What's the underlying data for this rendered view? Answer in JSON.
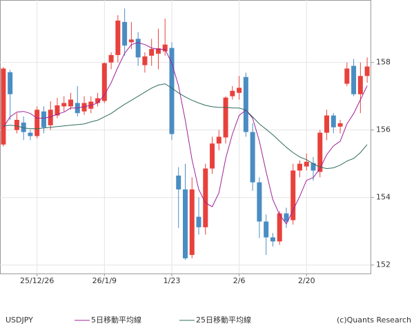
{
  "chart_data": {
    "type": "candlestick",
    "symbol": "USDJPY",
    "copyright": "(c)Quants Research",
    "categories": [
      null,
      null,
      null,
      null,
      null,
      "25/12/26",
      null,
      null,
      null,
      null,
      null,
      null,
      null,
      null,
      null,
      "26/1/9",
      null,
      null,
      null,
      null,
      null,
      null,
      null,
      null,
      null,
      "1/23",
      null,
      null,
      null,
      null,
      null,
      null,
      null,
      null,
      null,
      "2/6",
      null,
      null,
      null,
      null,
      null,
      null,
      null,
      null,
      null,
      "2/20",
      null,
      null,
      null,
      null,
      null,
      null,
      null,
      null,
      null
    ],
    "open": [
      155.57,
      157.71,
      156.0,
      156.22,
      155.92,
      155.82,
      156.55,
      156.14,
      156.43,
      156.7,
      156.7,
      156.8,
      156.55,
      156.63,
      156.8,
      156.86,
      158.0,
      158.22,
      159.2,
      158.6,
      158.7,
      157.92,
      158.2,
      158.26,
      158.33,
      158.43,
      154.65,
      154.24,
      152.3,
      153.43,
      153.12,
      154.86,
      155.6,
      155.78,
      157.0,
      157.1,
      157.57,
      155.94,
      154.45,
      153.29,
      152.82,
      152.7,
      153.53,
      153.33,
      154.8,
      154.92,
      155.02,
      154.76,
      155.92,
      156.43,
      156.1,
      157.37,
      157.9,
      157.06,
      157.6
    ],
    "high": [
      157.86,
      157.78,
      156.5,
      156.4,
      156.0,
      156.7,
      156.7,
      156.85,
      156.95,
      157.0,
      157.1,
      157.3,
      157.0,
      157.0,
      157.1,
      158.0,
      158.3,
      159.4,
      159.6,
      159.2,
      158.9,
      158.3,
      158.7,
      159.0,
      159.3,
      158.6,
      154.9,
      155.0,
      154.6,
      154.0,
      155.0,
      155.8,
      156.0,
      157.0,
      157.3,
      157.6,
      157.7,
      156.2,
      154.6,
      153.5,
      152.95,
      153.6,
      153.7,
      155.0,
      155.1,
      155.3,
      155.2,
      156.0,
      156.6,
      156.5,
      156.3,
      158.0,
      158.1,
      158.0,
      158.15
    ],
    "low": [
      155.51,
      156.3,
      155.9,
      155.7,
      155.7,
      155.75,
      155.9,
      156.0,
      156.35,
      156.55,
      156.6,
      156.4,
      156.45,
      156.5,
      156.7,
      156.8,
      157.8,
      158.0,
      158.2,
      158.4,
      157.9,
      157.7,
      157.9,
      157.8,
      158.2,
      155.7,
      153.1,
      152.15,
      152.2,
      152.9,
      152.9,
      154.7,
      155.4,
      155.6,
      156.9,
      156.9,
      155.8,
      154.2,
      152.8,
      152.3,
      152.55,
      152.6,
      153.1,
      153.2,
      154.6,
      154.8,
      154.5,
      154.6,
      155.7,
      155.9,
      155.9,
      157.3,
      157.0,
      156.5,
      157.4
    ],
    "close": [
      157.82,
      157.06,
      156.3,
      155.94,
      155.82,
      156.6,
      156.08,
      156.6,
      156.73,
      156.8,
      156.9,
      156.5,
      156.8,
      156.84,
      156.94,
      157.98,
      158.22,
      159.24,
      158.5,
      158.68,
      158.15,
      158.18,
      158.4,
      158.42,
      158.53,
      155.88,
      154.24,
      152.2,
      154.24,
      153.12,
      154.86,
      155.6,
      155.8,
      156.96,
      157.16,
      157.25,
      155.94,
      154.45,
      153.29,
      152.82,
      152.7,
      153.53,
      153.29,
      154.8,
      155.0,
      155.06,
      154.8,
      155.92,
      156.43,
      156.08,
      156.2,
      157.82,
      157.06,
      157.6,
      157.88
    ],
    "up_color": "#e8413c",
    "down_color": "#4a8dc3",
    "series": [
      {
        "name": "5日移動平均線",
        "color": "#a0209a",
        "values": [
          156.08,
          156.39,
          156.53,
          156.55,
          156.49,
          156.35,
          156.35,
          156.39,
          156.47,
          156.53,
          156.65,
          156.65,
          156.69,
          156.73,
          156.8,
          157.04,
          157.4,
          157.86,
          158.27,
          158.53,
          158.59,
          158.53,
          158.43,
          158.39,
          158.39,
          157.98,
          157.31,
          156.29,
          155.12,
          154.24,
          153.84,
          153.73,
          154.14,
          155.16,
          155.88,
          156.43,
          156.59,
          156.35,
          155.67,
          154.76,
          153.94,
          153.49,
          153.22,
          153.63,
          154.04,
          154.51,
          154.59,
          154.86,
          155.27,
          155.53,
          155.67,
          156.18,
          156.49,
          156.9,
          157.31
        ]
      },
      {
        "name": "25日移動平均線",
        "color": "#2f6b5e",
        "values": [
          156.12,
          156.14,
          156.12,
          156.06,
          156.04,
          156.04,
          156.06,
          156.08,
          156.1,
          156.12,
          156.14,
          156.16,
          156.18,
          156.24,
          156.29,
          156.39,
          156.49,
          156.63,
          156.76,
          156.88,
          157.0,
          157.12,
          157.24,
          157.33,
          157.37,
          157.24,
          157.1,
          156.98,
          156.88,
          156.8,
          156.73,
          156.69,
          156.67,
          156.67,
          156.65,
          156.65,
          156.59,
          156.39,
          156.18,
          156.02,
          155.86,
          155.67,
          155.49,
          155.33,
          155.2,
          155.12,
          155.0,
          154.9,
          154.86,
          154.88,
          154.96,
          155.08,
          155.16,
          155.33,
          155.57
        ]
      }
    ],
    "ylim": [
      151.75,
      159.85
    ],
    "yticks": [
      152,
      154,
      156,
      158
    ],
    "grid": true
  }
}
